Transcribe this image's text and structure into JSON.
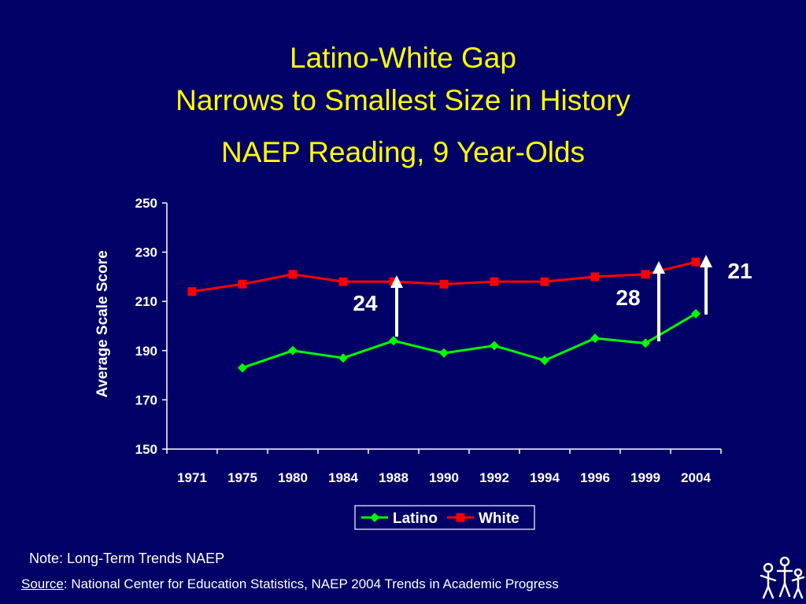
{
  "slide": {
    "title_line1": "Latino-White Gap",
    "title_line2": "Narrows to Smallest Size in History",
    "subtitle": "NAEP Reading, 9 Year-Olds",
    "note": "Note: Long-Term Trends NAEP",
    "source_label": "Source",
    "source_text": ": National Center for Education Statistics, NAEP 2004 Trends in Academic Progress"
  },
  "colors": {
    "background": "#000066",
    "title": "#ffff00",
    "latino": "#00ff00",
    "white": "#ff0000",
    "axis": "#ffffff"
  },
  "chart_data": {
    "type": "line",
    "categories": [
      "1971",
      "1975",
      "1980",
      "1984",
      "1988",
      "1990",
      "1992",
      "1994",
      "1996",
      "1999",
      "2004"
    ],
    "ylabel": "Average Scale Score",
    "ylim": [
      150,
      250
    ],
    "yticks": [
      150,
      170,
      190,
      210,
      230,
      250
    ],
    "grid": false,
    "legend_position": "bottom",
    "series": [
      {
        "name": "Latino",
        "color": "#00ff00",
        "marker": "diamond",
        "values": [
          null,
          183,
          190,
          187,
          194,
          189,
          192,
          186,
          195,
          193,
          205
        ]
      },
      {
        "name": "White",
        "color": "#ff0000",
        "marker": "square",
        "values": [
          214,
          217,
          221,
          218,
          218,
          217,
          218,
          218,
          220,
          221,
          226
        ]
      }
    ],
    "annotations": [
      {
        "label": "24",
        "between": "1988"
      },
      {
        "label": "28",
        "between": "1999"
      },
      {
        "label": "21",
        "between": "2004"
      }
    ]
  }
}
